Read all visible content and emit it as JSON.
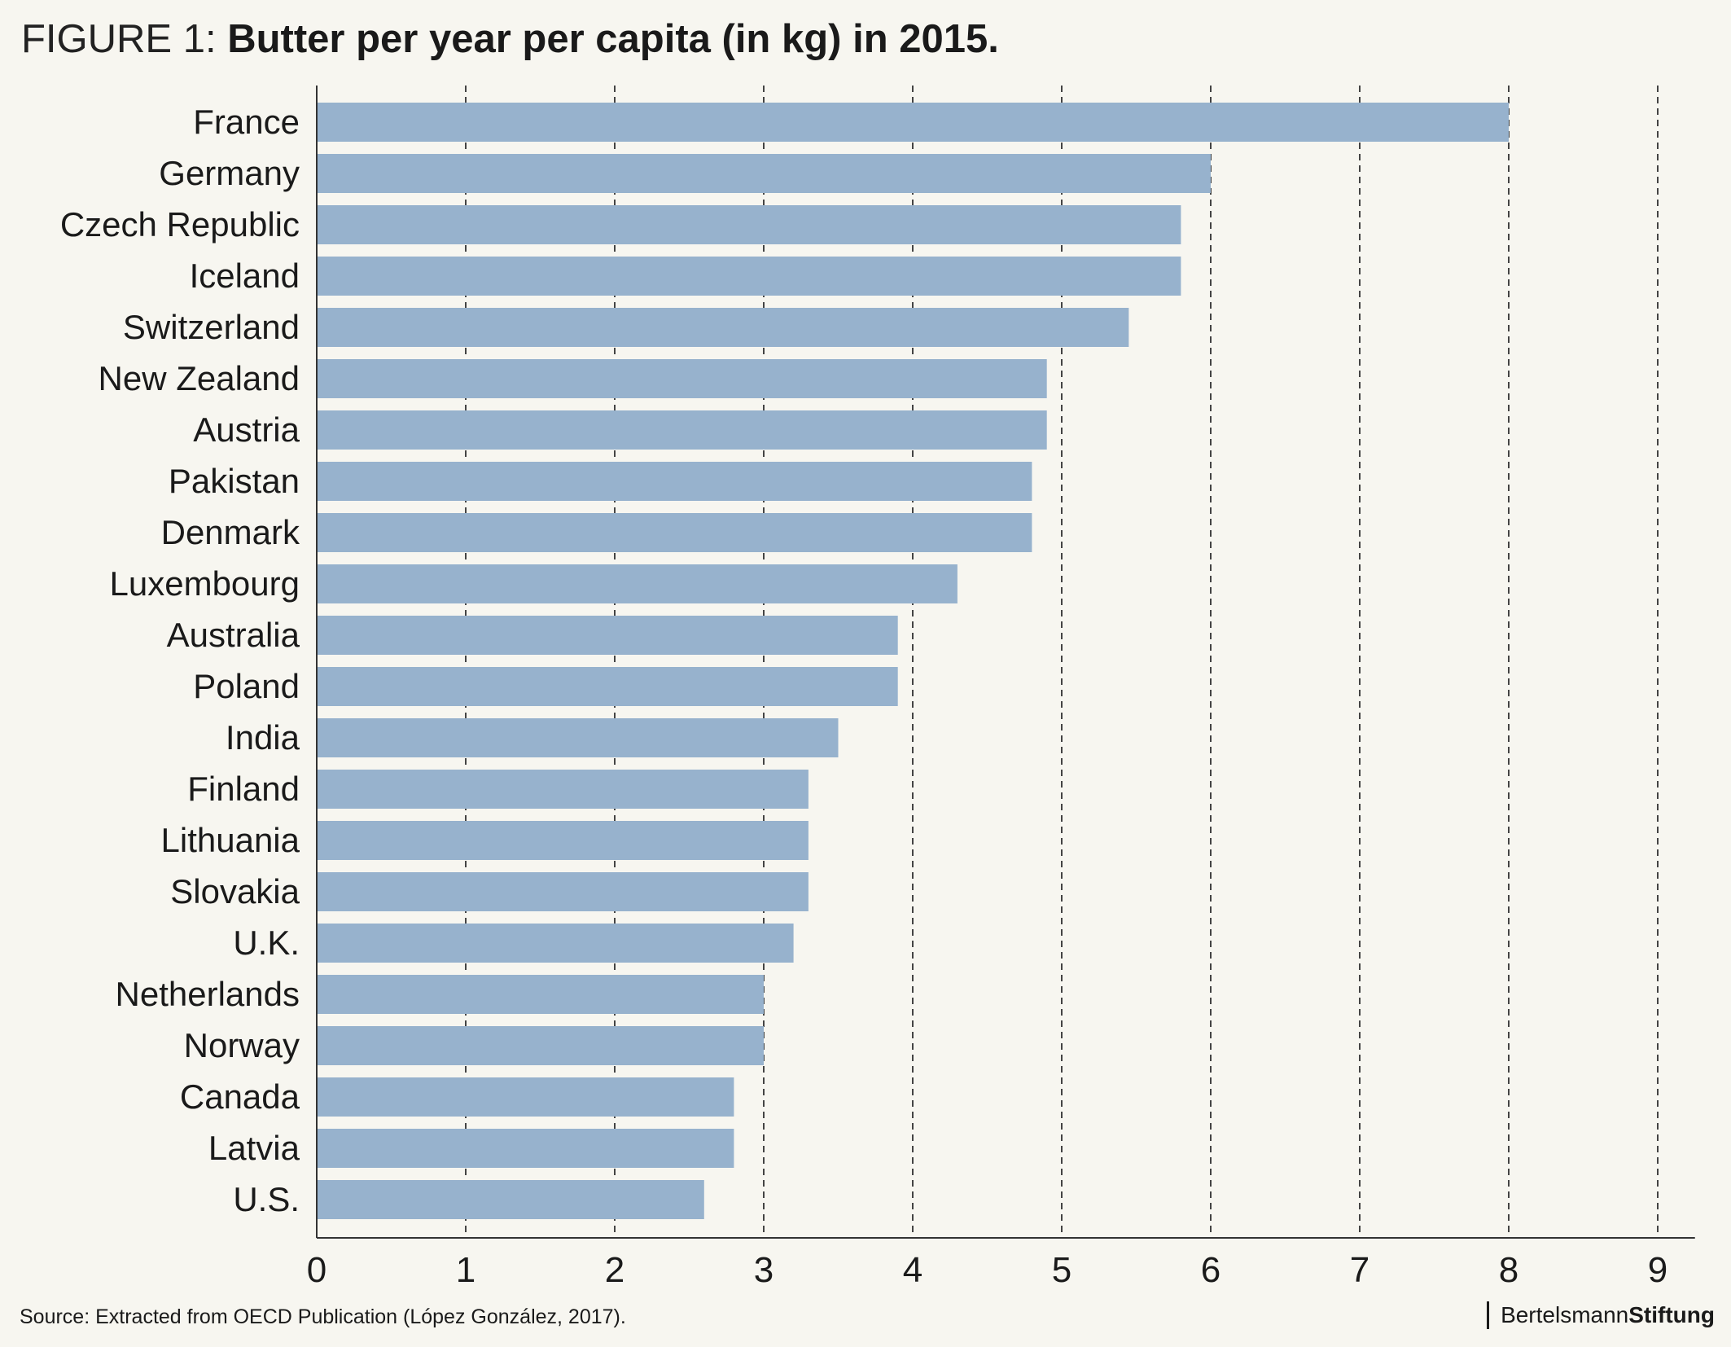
{
  "title": {
    "prefix": "FIGURE 1:",
    "main": "Butter per year per capita (in kg) in 2015."
  },
  "source": "Source: Extracted from OECD Publication (López González, 2017).",
  "logo": {
    "part1": "Bertelsmann",
    "part2": "Stiftung"
  },
  "colors": {
    "bar": "#97b2cd",
    "background": "#f7f6f0",
    "grid": "#444444",
    "axis": "#333333"
  },
  "chart_data": {
    "type": "bar",
    "orientation": "horizontal",
    "categories": [
      "France",
      "Germany",
      "Czech Republic",
      "Iceland",
      "Switzerland",
      "New Zealand",
      "Austria",
      "Pakistan",
      "Denmark",
      "Luxembourg",
      "Australia",
      "Poland",
      "India",
      "Finland",
      "Lithuania",
      "Slovakia",
      "U.K.",
      "Netherlands",
      "Norway",
      "Canada",
      "Latvia",
      "U.S."
    ],
    "values": [
      8.0,
      6.0,
      5.8,
      5.8,
      5.45,
      4.9,
      4.9,
      4.8,
      4.8,
      4.3,
      3.9,
      3.9,
      3.5,
      3.3,
      3.3,
      3.3,
      3.2,
      3.0,
      3.0,
      2.8,
      2.8,
      2.6
    ],
    "xlim": [
      0,
      9.25
    ],
    "xticks": [
      0,
      1,
      2,
      3,
      4,
      5,
      6,
      7,
      8,
      9
    ],
    "grid": "vertical dashed",
    "xlabel": "",
    "ylabel": ""
  }
}
